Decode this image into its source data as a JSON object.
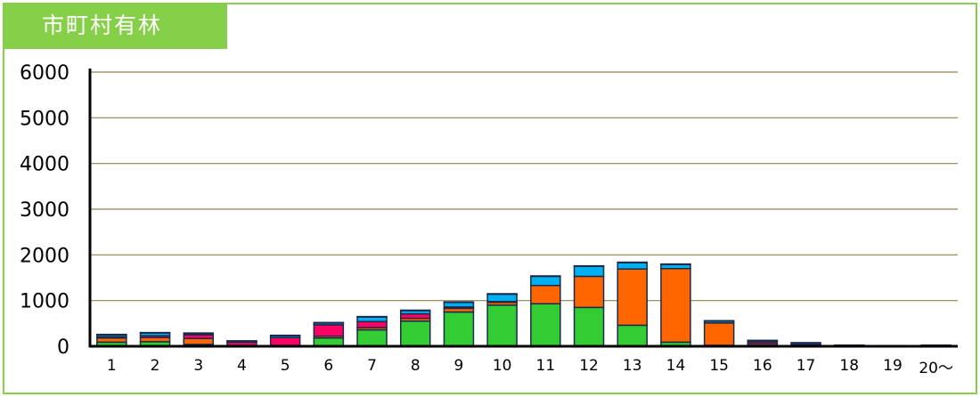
{
  "title": "市町村有林",
  "colors": {
    "frame": "#86d049",
    "gridline": "#8b8553",
    "axis": "#000000"
  },
  "chart_data": {
    "type": "bar",
    "stacked": true,
    "title": "市町村有林",
    "xlabel": "",
    "ylabel": "",
    "ylim": [
      0,
      6000
    ],
    "yticks": [
      0,
      1000,
      2000,
      3000,
      4000,
      5000,
      6000
    ],
    "grid": true,
    "categories": [
      "1",
      "2",
      "3",
      "4",
      "5",
      "6",
      "7",
      "8",
      "9",
      "10",
      "11",
      "12",
      "13",
      "14",
      "15",
      "16",
      "17",
      "18",
      "19",
      "20～"
    ],
    "series": [
      {
        "color": "#33cc33",
        "values": [
          90,
          100,
          40,
          10,
          10,
          180,
          360,
          550,
          750,
          900,
          930,
          850,
          460,
          90,
          20,
          20,
          10,
          5,
          0,
          5
        ]
      },
      {
        "color": "#ff6600",
        "values": [
          90,
          90,
          130,
          10,
          10,
          40,
          50,
          60,
          80,
          60,
          400,
          680,
          1230,
          1610,
          490,
          40,
          10,
          5,
          5,
          10
        ]
      },
      {
        "color": "#ff0066",
        "values": [
          30,
          40,
          80,
          70,
          170,
          250,
          130,
          100,
          30,
          20,
          0,
          0,
          0,
          0,
          0,
          40,
          0,
          0,
          0,
          0
        ]
      },
      {
        "color": "#00b0f0",
        "values": [
          40,
          60,
          30,
          20,
          40,
          40,
          100,
          70,
          100,
          160,
          200,
          220,
          140,
          90,
          40,
          20,
          20,
          5,
          5,
          5
        ]
      },
      {
        "color": "#1f3c88",
        "values": [
          10,
          10,
          10,
          10,
          10,
          10,
          10,
          10,
          10,
          10,
          10,
          10,
          10,
          10,
          10,
          10,
          40,
          10,
          5,
          5
        ]
      }
    ]
  }
}
